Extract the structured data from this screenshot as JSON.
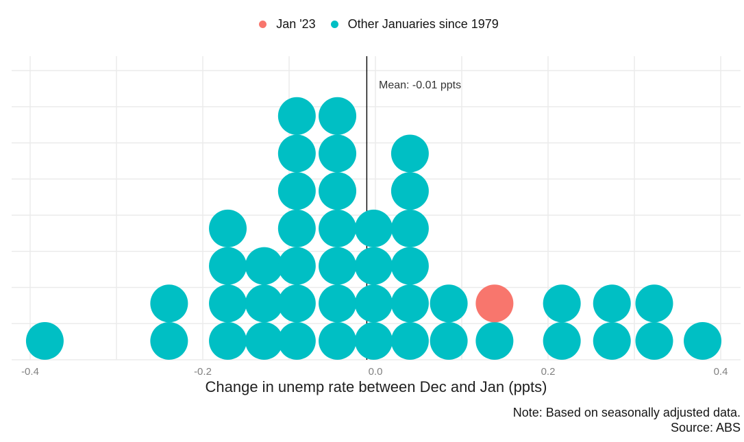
{
  "legend": {
    "items": [
      {
        "label": "Jan '23",
        "color": "#F8766D"
      },
      {
        "label": "Other Januaries since 1979",
        "color": "#00BFC4"
      }
    ]
  },
  "notes": {
    "line1": "Note: Based on seasonally adjusted data.",
    "line2": "Source: ABS"
  },
  "chart_data": {
    "type": "scatter",
    "subtype": "stacked-dot-histogram",
    "title": "",
    "xlabel": "Change in unemp rate between Dec and Jan (ppts)",
    "ylabel": "",
    "xlim": [
      -0.43,
      0.42
    ],
    "x_ticks": [
      -0.4,
      -0.2,
      0.0,
      0.2,
      0.4
    ],
    "x_tick_labels": [
      "-0.4",
      "-0.2",
      "0.0",
      "0.2",
      "0.4"
    ],
    "x_grid_step": 0.1,
    "y_gridline_count": 9,
    "grid": true,
    "legend_position": "top-center",
    "mean": -0.01,
    "mean_label": "Mean: -0.01 ppts",
    "colors": {
      "highlight": "#F8766D",
      "base": "#00BFC4",
      "gridline": "#EBEBEB",
      "mean_line": "#000000"
    },
    "series": [
      {
        "name": "Jan '23",
        "color": "#F8766D",
        "stacks": [
          {
            "x": 0.138,
            "rows": [
              2
            ]
          }
        ]
      },
      {
        "name": "Other Januaries since 1979",
        "color": "#00BFC4",
        "stacks": [
          {
            "x": -0.383,
            "count": 1
          },
          {
            "x": -0.239,
            "count": 2
          },
          {
            "x": -0.171,
            "count": 4
          },
          {
            "x": -0.129,
            "count": 3
          },
          {
            "x": -0.091,
            "count": 7
          },
          {
            "x": -0.044,
            "count": 7
          },
          {
            "x": -0.002,
            "count": 4
          },
          {
            "x": 0.04,
            "count": 6
          },
          {
            "x": 0.085,
            "count": 2
          },
          {
            "x": 0.138,
            "count": 1
          },
          {
            "x": 0.216,
            "count": 2
          },
          {
            "x": 0.274,
            "count": 2
          },
          {
            "x": 0.323,
            "count": 2
          },
          {
            "x": 0.379,
            "count": 1
          }
        ]
      }
    ]
  }
}
